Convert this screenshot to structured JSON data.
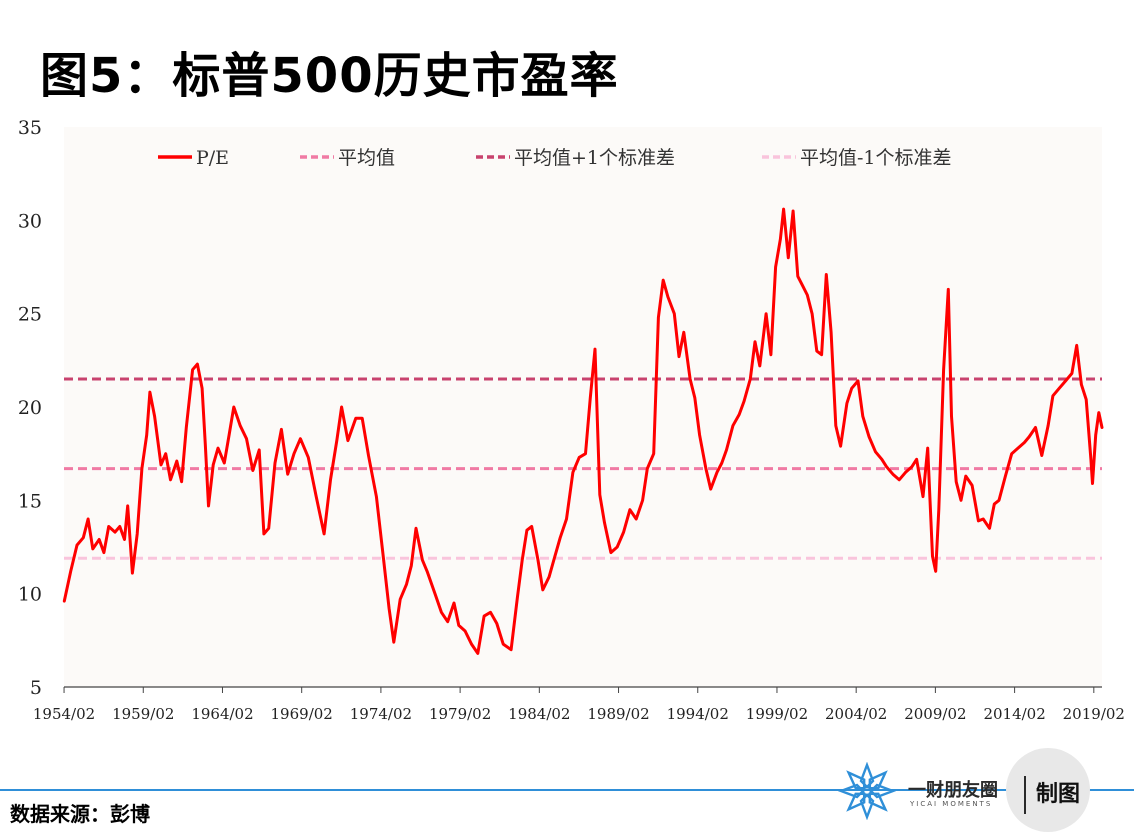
{
  "title": "图5：标普500历史市盈率",
  "source": "数据来源：彭博",
  "brand": {
    "name": "一财朋友圈",
    "sub": "YICAI MOMENTS",
    "tag": "制图",
    "logo_icon": "snowflake-logo-icon",
    "accent": "#2f8fd8"
  },
  "chart_data": {
    "type": "line",
    "title": "",
    "xlabel": "",
    "ylabel": "",
    "ylim": [
      5,
      35
    ],
    "yticks": [
      5,
      10,
      15,
      20,
      25,
      30,
      35
    ],
    "xticks": [
      "1954/02",
      "1959/02",
      "1964/02",
      "1969/02",
      "1974/02",
      "1979/02",
      "1984/02",
      "1989/02",
      "1994/02",
      "1999/02",
      "2004/02",
      "2009/02",
      "2014/02",
      "2019/02"
    ],
    "xrange": [
      1954.08,
      2019.6
    ],
    "legend_position": "top",
    "background": "#fcfaf8",
    "series": [
      {
        "name": "P/E",
        "style": "solid",
        "color": "#ff0000",
        "points": [
          [
            1954.1,
            9.6
          ],
          [
            1954.5,
            11.2
          ],
          [
            1954.9,
            12.6
          ],
          [
            1955.3,
            13.0
          ],
          [
            1955.6,
            14.0
          ],
          [
            1955.9,
            12.4
          ],
          [
            1956.3,
            12.9
          ],
          [
            1956.6,
            12.2
          ],
          [
            1956.9,
            13.6
          ],
          [
            1957.3,
            13.3
          ],
          [
            1957.6,
            13.6
          ],
          [
            1957.9,
            12.9
          ],
          [
            1958.1,
            14.7
          ],
          [
            1958.4,
            11.1
          ],
          [
            1958.7,
            13.2
          ],
          [
            1959.0,
            16.7
          ],
          [
            1959.3,
            18.5
          ],
          [
            1959.5,
            20.8
          ],
          [
            1959.8,
            19.5
          ],
          [
            1960.2,
            16.9
          ],
          [
            1960.5,
            17.5
          ],
          [
            1960.8,
            16.1
          ],
          [
            1961.2,
            17.1
          ],
          [
            1961.5,
            16.0
          ],
          [
            1961.8,
            18.9
          ],
          [
            1962.2,
            22.0
          ],
          [
            1962.5,
            22.3
          ],
          [
            1962.8,
            21.0
          ],
          [
            1963.0,
            18.0
          ],
          [
            1963.2,
            14.7
          ],
          [
            1963.5,
            16.9
          ],
          [
            1963.8,
            17.8
          ],
          [
            1964.2,
            17.0
          ],
          [
            1964.5,
            18.5
          ],
          [
            1964.8,
            20.0
          ],
          [
            1965.2,
            19.0
          ],
          [
            1965.6,
            18.3
          ],
          [
            1966.0,
            16.6
          ],
          [
            1966.4,
            17.7
          ],
          [
            1966.7,
            13.2
          ],
          [
            1967.0,
            13.5
          ],
          [
            1967.4,
            17.0
          ],
          [
            1967.8,
            18.8
          ],
          [
            1968.2,
            16.4
          ],
          [
            1968.6,
            17.5
          ],
          [
            1969.0,
            18.3
          ],
          [
            1969.5,
            17.3
          ],
          [
            1970.0,
            15.2
          ],
          [
            1970.5,
            13.2
          ],
          [
            1970.9,
            16.1
          ],
          [
            1971.3,
            18.2
          ],
          [
            1971.6,
            20.0
          ],
          [
            1972.0,
            18.2
          ],
          [
            1972.5,
            19.4
          ],
          [
            1972.9,
            19.4
          ],
          [
            1973.3,
            17.4
          ],
          [
            1973.8,
            15.2
          ],
          [
            1974.2,
            12.2
          ],
          [
            1974.6,
            9.2
          ],
          [
            1974.9,
            7.4
          ],
          [
            1975.3,
            9.7
          ],
          [
            1975.7,
            10.5
          ],
          [
            1976.0,
            11.5
          ],
          [
            1976.3,
            13.5
          ],
          [
            1976.7,
            11.8
          ],
          [
            1977.0,
            11.2
          ],
          [
            1977.5,
            10.0
          ],
          [
            1977.9,
            9.0
          ],
          [
            1978.3,
            8.5
          ],
          [
            1978.7,
            9.5
          ],
          [
            1979.0,
            8.3
          ],
          [
            1979.4,
            8.0
          ],
          [
            1979.8,
            7.3
          ],
          [
            1980.2,
            6.8
          ],
          [
            1980.6,
            8.8
          ],
          [
            1981.0,
            9.0
          ],
          [
            1981.4,
            8.4
          ],
          [
            1981.8,
            7.3
          ],
          [
            1982.3,
            7.0
          ],
          [
            1982.7,
            9.8
          ],
          [
            1983.0,
            11.8
          ],
          [
            1983.3,
            13.4
          ],
          [
            1983.6,
            13.6
          ],
          [
            1984.0,
            11.8
          ],
          [
            1984.3,
            10.2
          ],
          [
            1984.7,
            10.9
          ],
          [
            1985.0,
            11.8
          ],
          [
            1985.4,
            13.0
          ],
          [
            1985.8,
            14.0
          ],
          [
            1986.2,
            16.5
          ],
          [
            1986.6,
            17.3
          ],
          [
            1987.0,
            17.5
          ],
          [
            1987.3,
            20.5
          ],
          [
            1987.6,
            23.1
          ],
          [
            1987.9,
            15.3
          ],
          [
            1988.2,
            13.8
          ],
          [
            1988.6,
            12.2
          ],
          [
            1989.0,
            12.5
          ],
          [
            1989.4,
            13.3
          ],
          [
            1989.8,
            14.5
          ],
          [
            1990.2,
            14.0
          ],
          [
            1990.6,
            15.0
          ],
          [
            1990.9,
            16.7
          ],
          [
            1991.3,
            17.5
          ],
          [
            1991.6,
            24.8
          ],
          [
            1991.9,
            26.8
          ],
          [
            1992.2,
            25.9
          ],
          [
            1992.6,
            25.0
          ],
          [
            1992.9,
            22.7
          ],
          [
            1993.2,
            24.0
          ],
          [
            1993.6,
            21.5
          ],
          [
            1993.9,
            20.5
          ],
          [
            1994.2,
            18.5
          ],
          [
            1994.6,
            16.7
          ],
          [
            1994.9,
            15.6
          ],
          [
            1995.3,
            16.5
          ],
          [
            1995.6,
            17.0
          ],
          [
            1995.9,
            17.7
          ],
          [
            1996.3,
            19.0
          ],
          [
            1996.7,
            19.6
          ],
          [
            1997.0,
            20.3
          ],
          [
            1997.4,
            21.5
          ],
          [
            1997.7,
            23.5
          ],
          [
            1998.0,
            22.2
          ],
          [
            1998.4,
            25.0
          ],
          [
            1998.7,
            22.8
          ],
          [
            1999.0,
            27.5
          ],
          [
            1999.3,
            29.0
          ],
          [
            1999.5,
            30.6
          ],
          [
            1999.8,
            28.0
          ],
          [
            2000.1,
            30.5
          ],
          [
            2000.4,
            27.0
          ],
          [
            2000.7,
            26.5
          ],
          [
            2001.0,
            26.0
          ],
          [
            2001.3,
            25.0
          ],
          [
            2001.6,
            23.0
          ],
          [
            2001.9,
            22.8
          ],
          [
            2002.2,
            27.1
          ],
          [
            2002.5,
            24.0
          ],
          [
            2002.8,
            19.0
          ],
          [
            2003.1,
            17.9
          ],
          [
            2003.5,
            20.2
          ],
          [
            2003.8,
            21.0
          ],
          [
            2004.2,
            21.4
          ],
          [
            2004.5,
            19.5
          ],
          [
            2004.9,
            18.4
          ],
          [
            2005.3,
            17.6
          ],
          [
            2005.7,
            17.2
          ],
          [
            2006.0,
            16.8
          ],
          [
            2006.4,
            16.4
          ],
          [
            2006.8,
            16.1
          ],
          [
            2007.2,
            16.5
          ],
          [
            2007.6,
            16.8
          ],
          [
            2007.9,
            17.2
          ],
          [
            2008.3,
            15.2
          ],
          [
            2008.6,
            17.8
          ],
          [
            2008.9,
            12.0
          ],
          [
            2009.1,
            11.2
          ],
          [
            2009.3,
            14.5
          ],
          [
            2009.6,
            22.0
          ],
          [
            2009.9,
            26.3
          ],
          [
            2010.1,
            19.5
          ],
          [
            2010.4,
            16.0
          ],
          [
            2010.7,
            15.0
          ],
          [
            2011.0,
            16.3
          ],
          [
            2011.4,
            15.8
          ],
          [
            2011.8,
            13.9
          ],
          [
            2012.1,
            14.0
          ],
          [
            2012.5,
            13.5
          ],
          [
            2012.8,
            14.8
          ],
          [
            2013.1,
            15.0
          ],
          [
            2013.5,
            16.3
          ],
          [
            2013.9,
            17.5
          ],
          [
            2014.3,
            17.8
          ],
          [
            2014.7,
            18.1
          ],
          [
            2015.0,
            18.4
          ],
          [
            2015.4,
            18.9
          ],
          [
            2015.8,
            17.4
          ],
          [
            2016.2,
            19.0
          ],
          [
            2016.5,
            20.6
          ],
          [
            2016.9,
            21.0
          ],
          [
            2017.3,
            21.4
          ],
          [
            2017.7,
            21.8
          ],
          [
            2018.0,
            23.3
          ],
          [
            2018.3,
            21.2
          ],
          [
            2018.6,
            20.4
          ],
          [
            2018.9,
            17.2
          ],
          [
            2019.0,
            15.9
          ],
          [
            2019.2,
            18.5
          ],
          [
            2019.4,
            19.7
          ],
          [
            2019.6,
            18.9
          ]
        ]
      },
      {
        "name": "平均值",
        "style": "dashed",
        "color": "#f07aa4",
        "value": 16.7
      },
      {
        "name": "平均值+1个标准差",
        "style": "dashed",
        "color": "#c8426e",
        "value": 21.5
      },
      {
        "name": "平均值-1个标准差",
        "style": "dashed",
        "color": "#f9c4dc",
        "value": 11.9
      }
    ]
  }
}
